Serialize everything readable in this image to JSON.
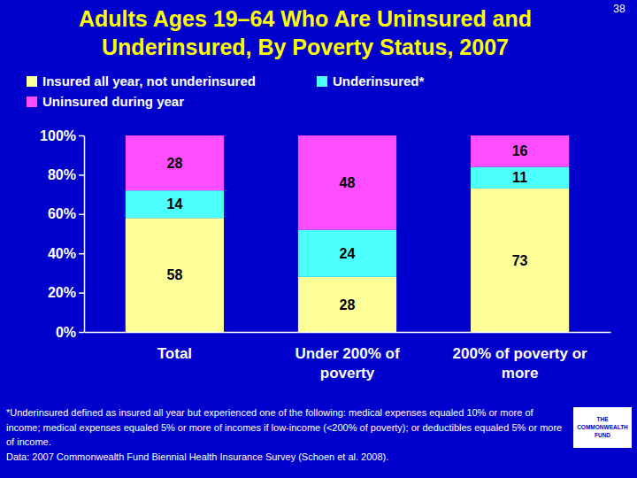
{
  "chart_data": {
    "type": "bar",
    "title": "Adults Ages 19–64 Who Are Uninsured and Underinsured, By Poverty Status, 2007",
    "categories": [
      "Total",
      "Under 200% of poverty",
      "200% of poverty or more"
    ],
    "series": [
      {
        "name": "Insured all year, not underinsured",
        "color": "#ffff99",
        "values": [
          58,
          28,
          73
        ]
      },
      {
        "name": "Underinsured*",
        "color": "#4dffff",
        "values": [
          14,
          24,
          11
        ]
      },
      {
        "name": "Uninsured during year",
        "color": "#ff4dff",
        "values": [
          28,
          48,
          16
        ]
      }
    ],
    "ylim": [
      0,
      100
    ],
    "yticks": [
      {
        "value": 0,
        "label": "0%"
      },
      {
        "value": 20,
        "label": "20%"
      },
      {
        "value": 40,
        "label": "40%"
      },
      {
        "value": 60,
        "label": "60%"
      },
      {
        "value": 80,
        "label": "80%"
      },
      {
        "value": 100,
        "label": "100%"
      }
    ],
    "stacked": true,
    "data_labels": true,
    "grid": false,
    "legend": "top",
    "footnote": "*Underinsured defined as insured all year but experienced one of the following: medical expenses equaled 10% or more of income; medical expenses equaled 5% or more of incomes if low-income (<200% of poverty); or deductibles equaled 5% or more of income.",
    "source": "Data: 2007 Commonwealth Fund Biennial Health Insurance Survey (Schoen et al. 2008).",
    "logo": [
      "THE",
      "COMMONWEALTH",
      "FUND"
    ],
    "page_number": "38"
  }
}
